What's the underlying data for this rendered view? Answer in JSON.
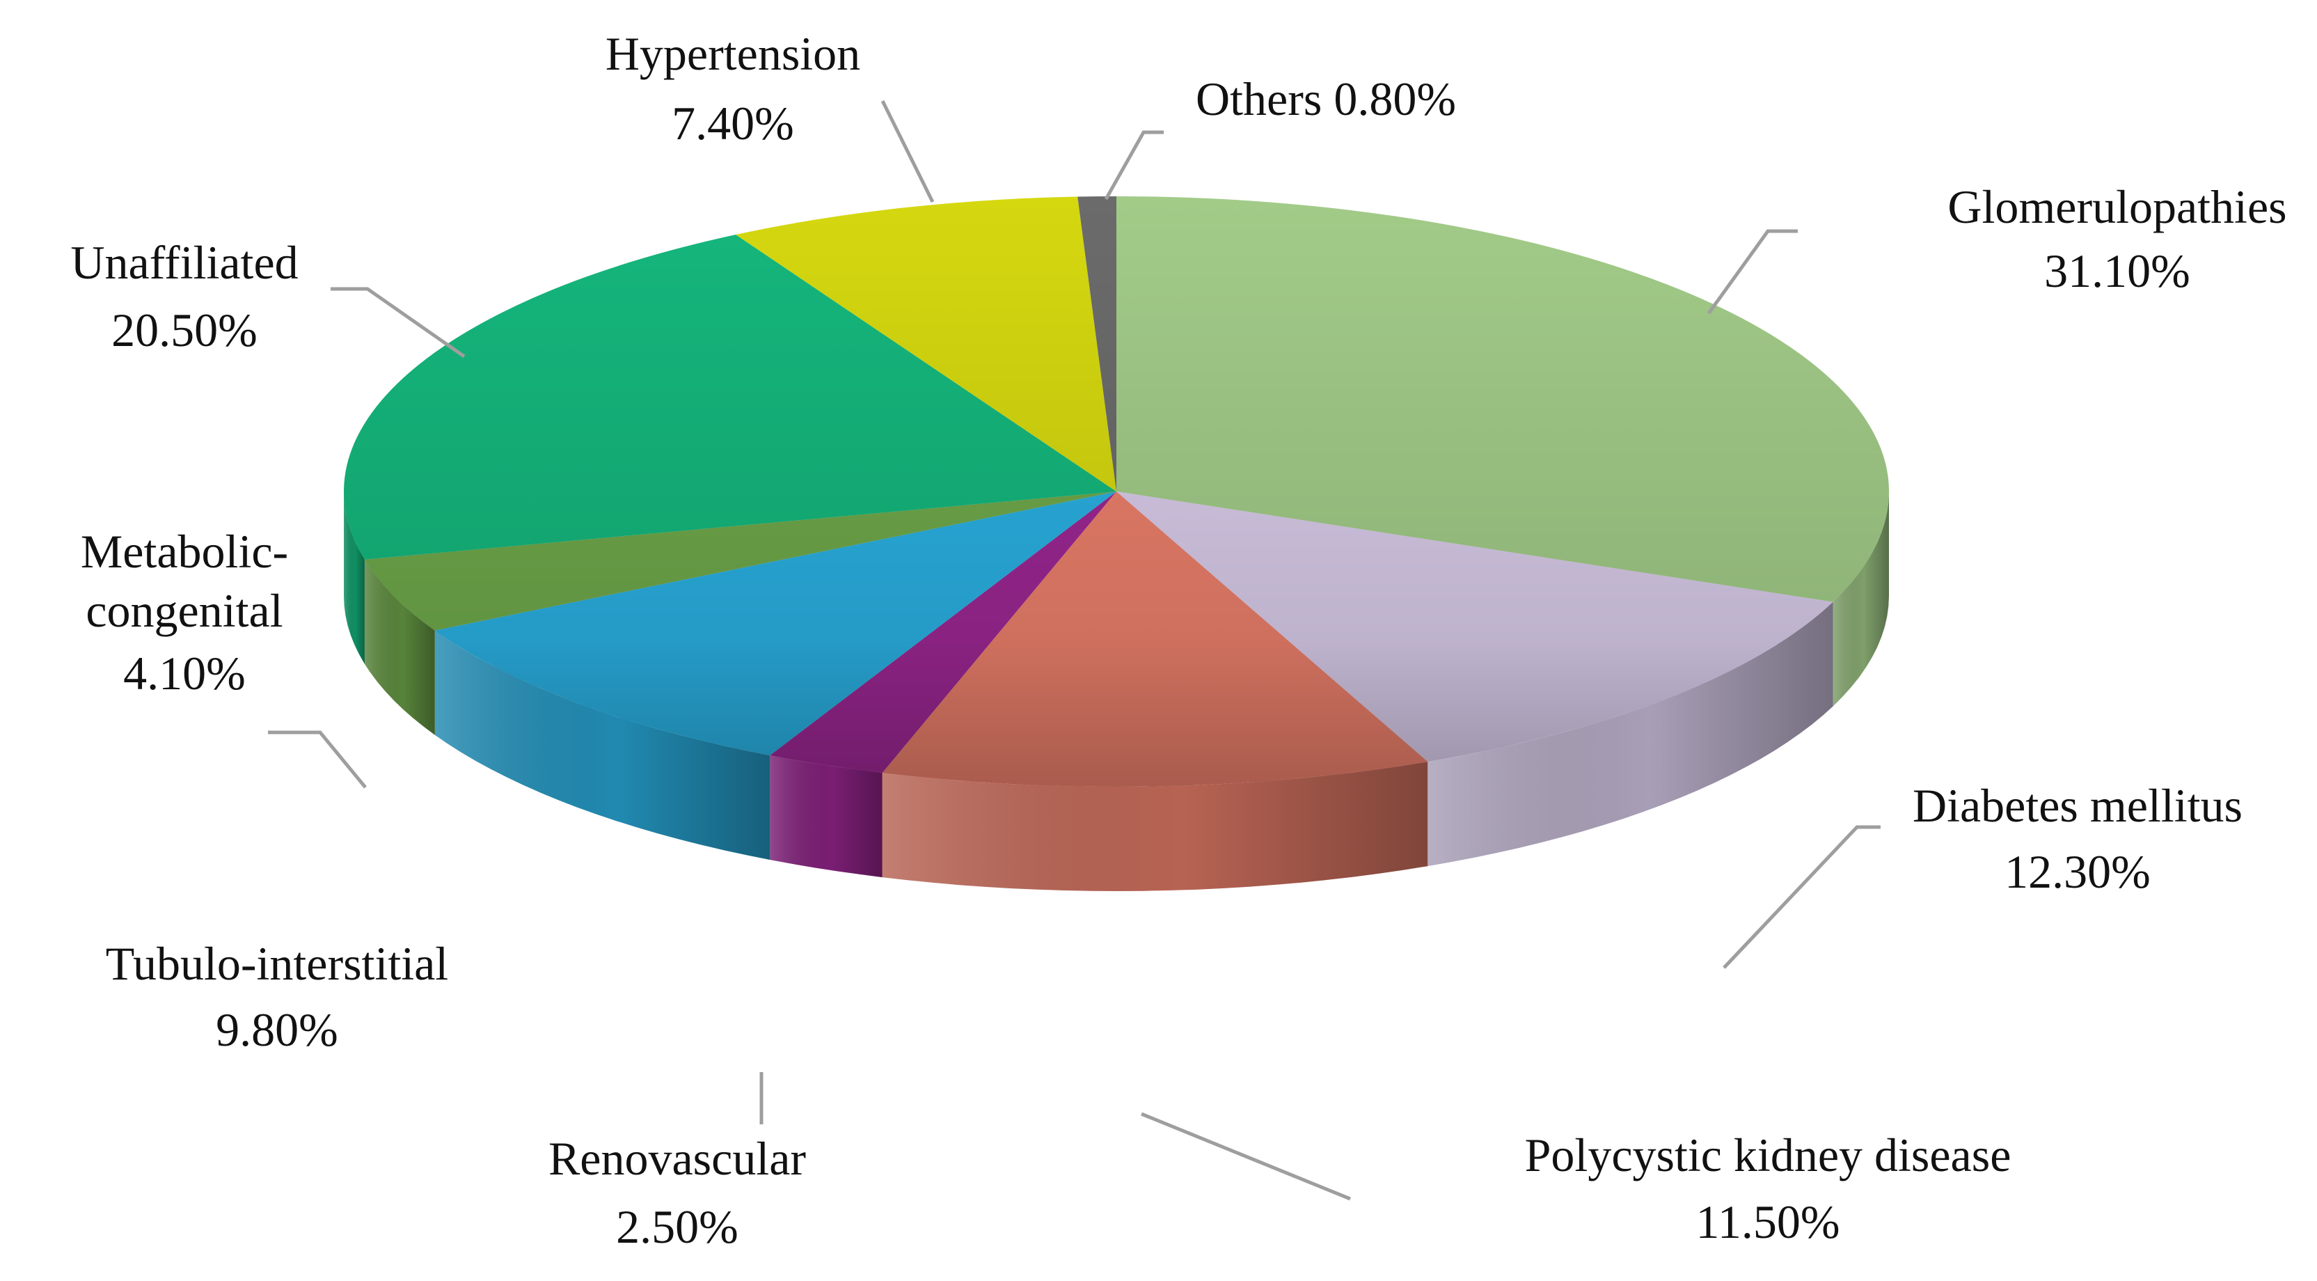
{
  "chart_data": {
    "type": "pie",
    "title": "",
    "legend": "none (data labels on leader lines)",
    "slices": [
      {
        "label": "Glomerulopathies",
        "value": 31.1,
        "value_label": "31.10%",
        "color": "#a2cb88"
      },
      {
        "label": "Diabetes mellitus",
        "value": 12.3,
        "value_label": "12.30%",
        "color": "#d8cbe9"
      },
      {
        "label": "Polycystic kidney disease",
        "value": 11.5,
        "value_label": "11.50%",
        "color": "#eb7f6b"
      },
      {
        "label": "Renovascular",
        "value": 2.5,
        "value_label": "2.50%",
        "color": "#9c2793"
      },
      {
        "label": "Tubulo-interstitial",
        "value": 9.8,
        "value_label": "9.80%",
        "color": "#2ab0e2"
      },
      {
        "label": "Metabolic-congenital",
        "value": 4.1,
        "value_label": "4.10%",
        "color": "#6fa84a"
      },
      {
        "label": "Unaffiliated",
        "value": 20.5,
        "value_label": "20.50%",
        "color": "#15b77d"
      },
      {
        "label": "Hypertension",
        "value": 7.4,
        "value_label": "7.40%",
        "color": "#d5d80f"
      },
      {
        "label": "Others",
        "value": 0.8,
        "value_label": "0.80%",
        "color": "#6b6b6b"
      }
    ]
  }
}
